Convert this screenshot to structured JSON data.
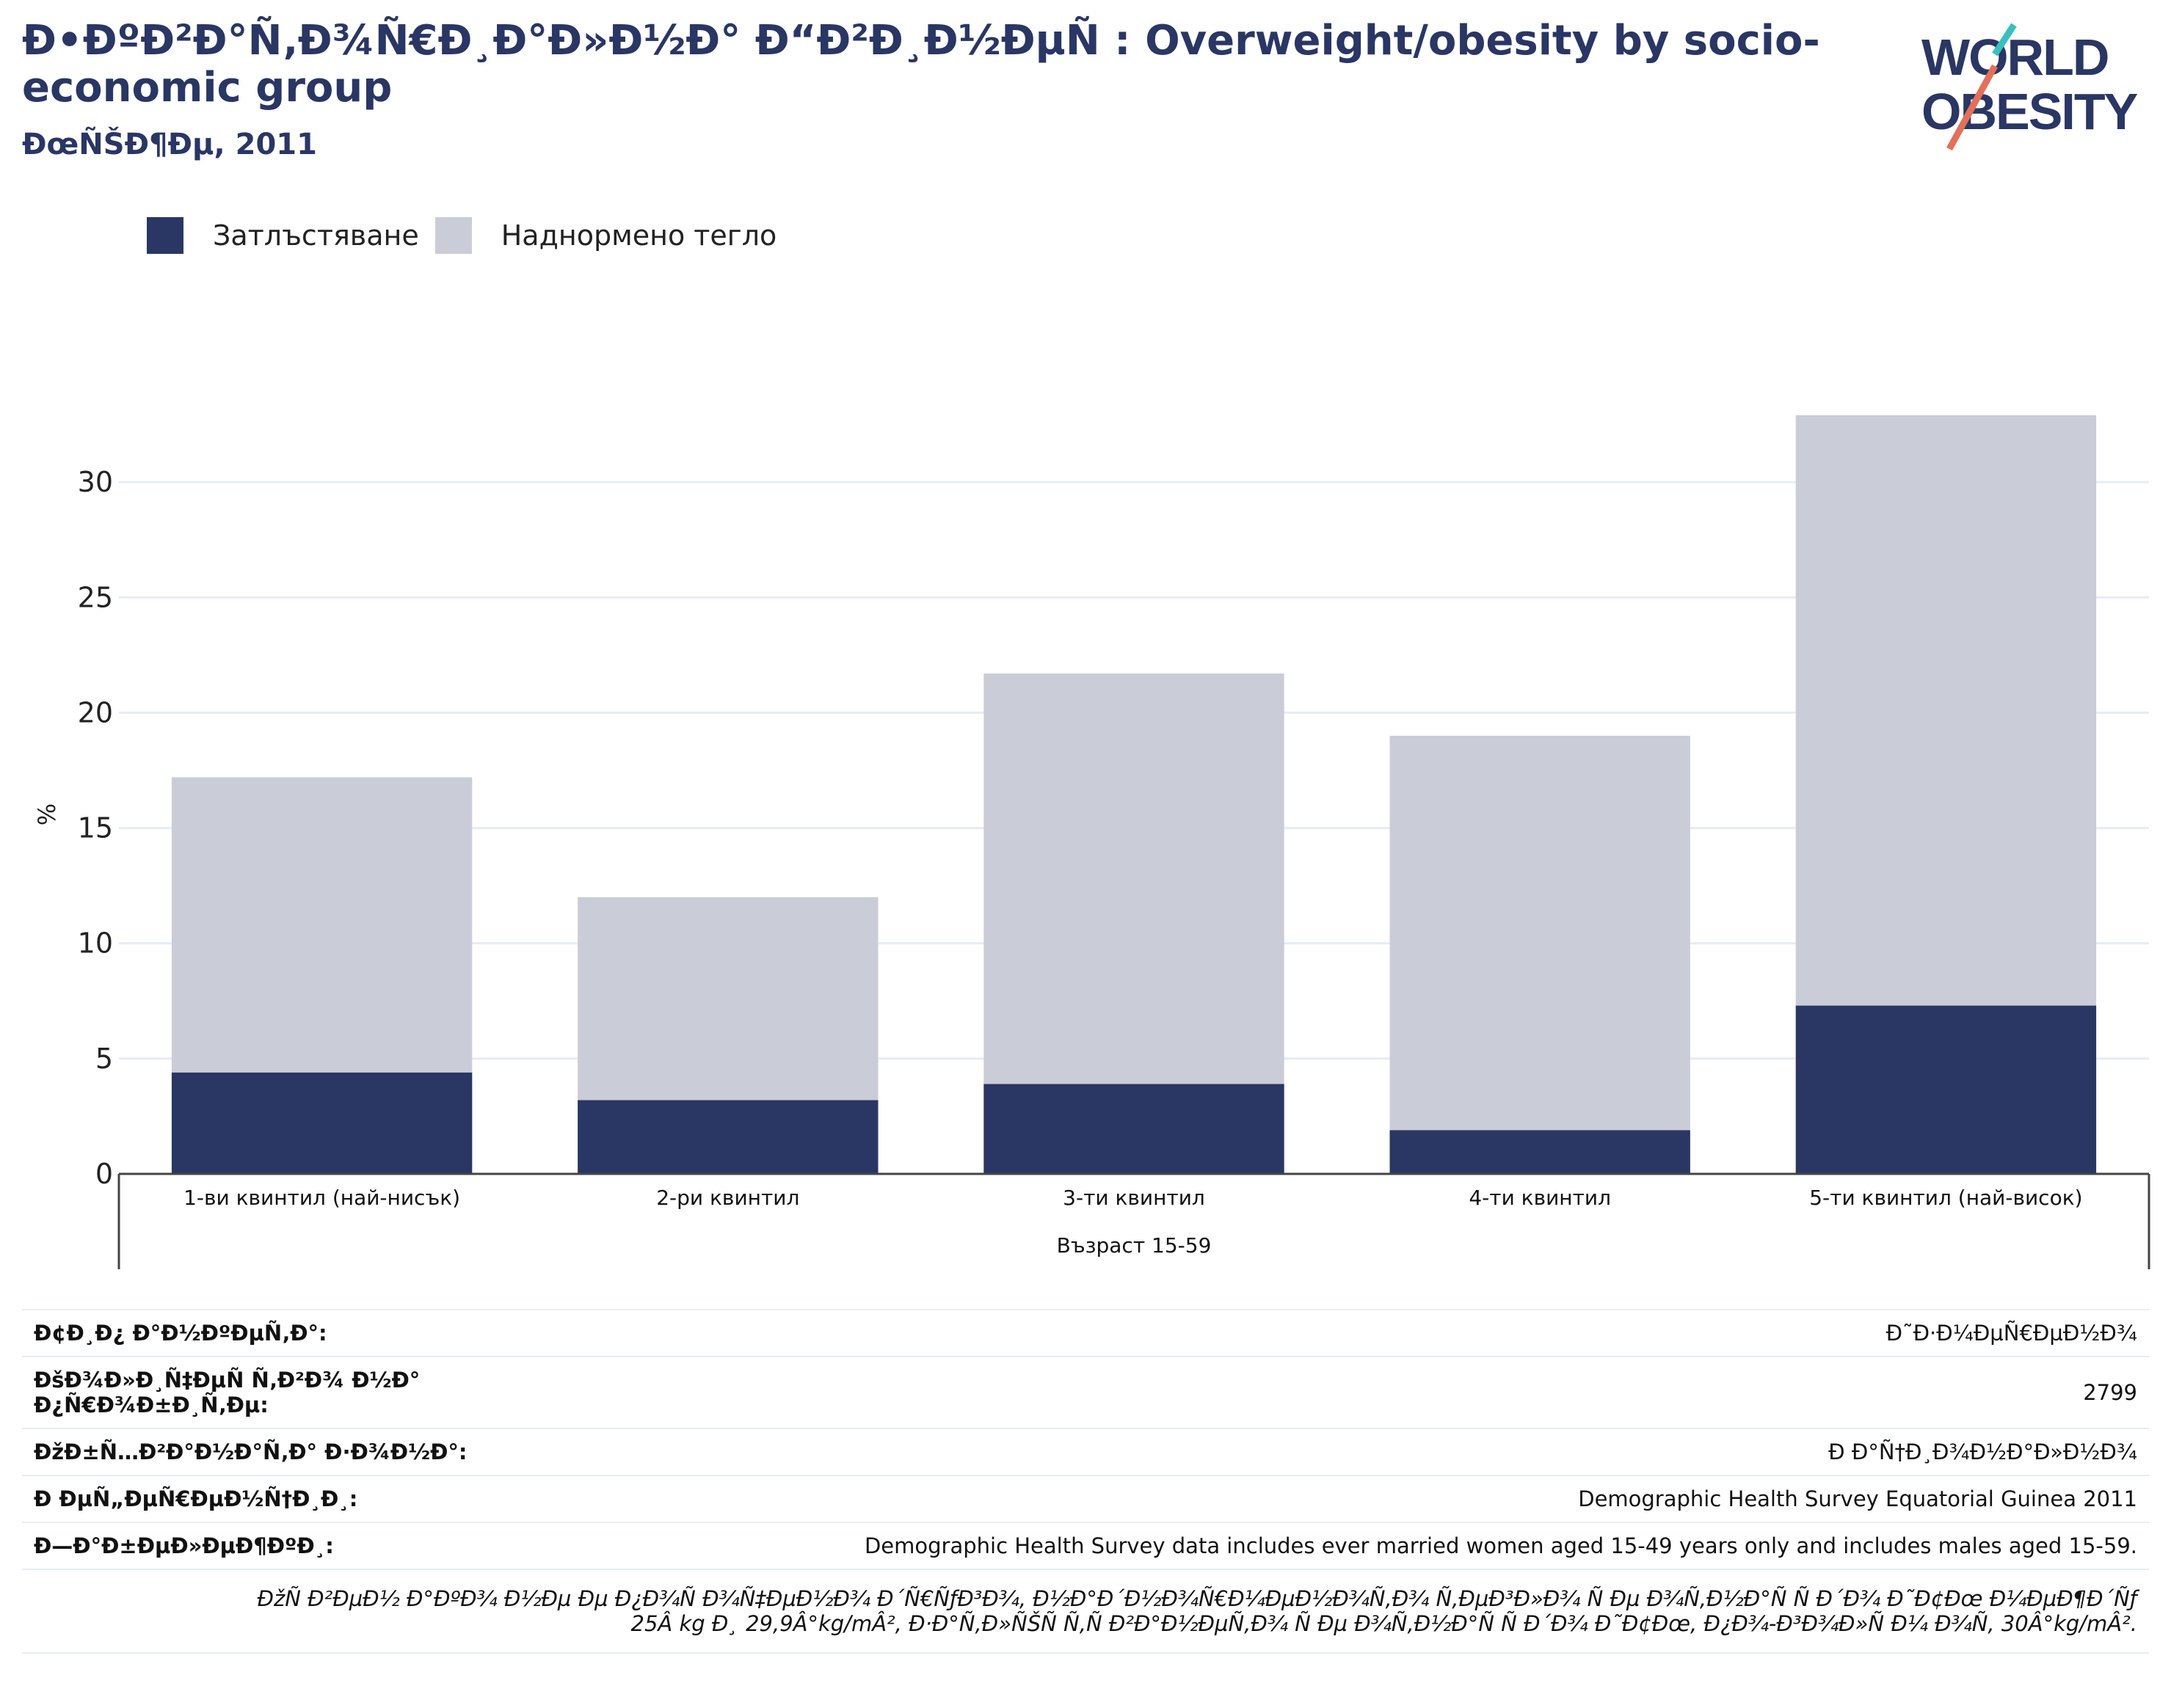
{
  "header": {
    "title": "Ð•ÐºÐ²Ð°Ñ‚Ð¾Ñ€Ð¸Ð°Ð»Ð½Ð° Ð“Ð²Ð¸Ð½ÐµÑ : Overweight/obesity by socio-economic group",
    "subtitle": "ÐœÑŠÐ¶Ðµ, 2011"
  },
  "logo": {
    "line1": "WORLD",
    "line2": "OBESITY",
    "accent_colors": [
      "#3bbfbf",
      "#e2705a"
    ]
  },
  "legend": [
    {
      "label": "Затлъстяване",
      "color": "#2a3663"
    },
    {
      "label": "Наднормено тегло",
      "color": "#cacdd8"
    }
  ],
  "chart_data": {
    "type": "bar",
    "stacked": true,
    "categories": [
      "1-ви квинтил (най-нисък)",
      "2-ри квинтил",
      "3-ти квинтил",
      "4-ти квинтил",
      "5-ти квинтил (най-висок)"
    ],
    "group_label": "Възраст 15-59",
    "series": [
      {
        "name": "Затлъстяване",
        "color": "#2a3663",
        "values": [
          4.4,
          3.2,
          3.9,
          1.9,
          7.3
        ]
      },
      {
        "name": "Наднормено тегло",
        "color": "#cacdd8",
        "values": [
          12.8,
          8.8,
          17.8,
          17.1,
          25.6
        ]
      }
    ],
    "ylabel": "%",
    "ylim": [
      0,
      35
    ],
    "yticks": [
      0,
      5,
      10,
      15,
      20,
      25,
      30
    ],
    "grid": true
  },
  "info_rows": [
    {
      "key": "Ð¢Ð¸Ð¿ Ð°Ð½ÐºÐµÑ‚Ð°:",
      "value": "Ð˜Ð·Ð¼ÐµÑ€ÐµÐ½Ð¾"
    },
    {
      "key": "ÐšÐ¾Ð»Ð¸Ñ‡ÐµÑ Ñ‚Ð²Ð¾ Ð½Ð° Ð¿Ñ€Ð¾Ð±Ð¸Ñ‚Ðµ:",
      "value": "2799"
    },
    {
      "key": "ÐžÐ±Ñ…Ð²Ð°Ð½Ð°Ñ‚Ð° Ð·Ð¾Ð½Ð°:",
      "value": "Ð Ð°Ñ†Ð¸Ð¾Ð½Ð°Ð»Ð½Ð¾"
    },
    {
      "key": "Ð ÐµÑ„ÐµÑ€ÐµÐ½Ñ†Ð¸Ð¸:",
      "value": "Demographic Health Survey Equatorial Guinea 2011"
    },
    {
      "key": "Ð—Ð°Ð±ÐµÐ»ÐµÐ¶ÐºÐ¸:",
      "value": "Demographic Health Survey data includes ever married women aged 15-49 years only and includes males aged 15-59."
    }
  ],
  "note": {
    "line1": "ÐžÑ Ð²ÐµÐ½ Ð°ÐºÐ¾ Ð½Ðµ Ðµ Ð¿Ð¾Ñ Ð¾Ñ‡ÐµÐ½Ð¾ Ð´Ñ€ÑƒÐ³Ð¾, Ð½Ð°Ð´Ð½Ð¾Ñ€Ð¼ÐµÐ½Ð¾Ñ‚Ð¾ Ñ‚ÐµÐ³Ð»Ð¾ Ñ Ðµ Ð¾Ñ‚Ð½Ð°Ñ Ñ  Ð´Ð¾ Ð˜Ð¢Ðœ Ð¼ÐµÐ¶Ð´Ñƒ",
    "line2": "25Â kg Ð¸ 29,9Â°kg/mÂ², Ð·Ð°Ñ‚Ð»ÑŠÑ Ñ‚Ñ Ð²Ð°Ð½ÐµÑ‚Ð¾ Ñ Ðµ Ð¾Ñ‚Ð½Ð°Ñ Ñ  Ð´Ð¾ Ð˜Ð¢Ðœ, Ð¿Ð¾-Ð³Ð¾Ð»Ñ Ð¼ Ð¾Ñ‚ 30Â°kg/mÂ²."
  }
}
